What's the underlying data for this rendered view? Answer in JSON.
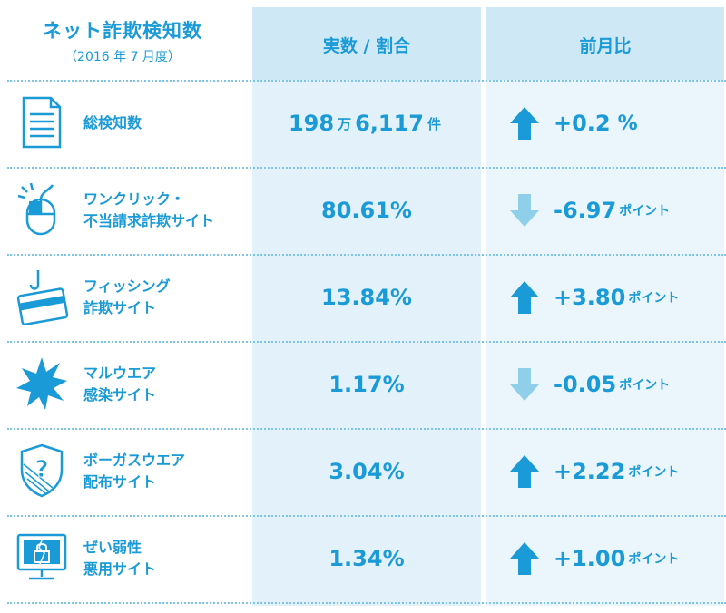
{
  "header": {
    "title": "ネット詐欺検知数",
    "subtitle": "（2016 年 7 月度）",
    "value_col": "実数 / 割合",
    "change_col": "前月比"
  },
  "colors": {
    "primary": "#1a9ad6",
    "up_arrow": "#1a9ad6",
    "down_arrow": "#8fcfea"
  },
  "rows": [
    {
      "icon": "document-icon",
      "label_lines": [
        "総検知数",
        ""
      ],
      "value_parts": [
        "198",
        "万",
        "6,117",
        "件"
      ],
      "direction": "up",
      "change_value": "+0.2",
      "change_unit": "%"
    },
    {
      "icon": "mouse-icon",
      "label_lines": [
        "ワンクリック・",
        "不当請求詐欺サイト"
      ],
      "value": "80.61%",
      "direction": "down",
      "change_value": "-6.97",
      "change_unit": "ポイント"
    },
    {
      "icon": "credit-card-hook-icon",
      "label_lines": [
        "フィッシング",
        "詐欺サイト"
      ],
      "value": "13.84%",
      "direction": "up",
      "change_value": "+3.80",
      "change_unit": "ポイント"
    },
    {
      "icon": "malware-burst-icon",
      "label_lines": [
        "マルウエア",
        "感染サイト"
      ],
      "value": "1.17%",
      "direction": "down",
      "change_value": "-0.05",
      "change_unit": "ポイント"
    },
    {
      "icon": "shield-question-icon",
      "label_lines": [
        "ボーガスウエア",
        "配布サイト"
      ],
      "value": "3.04%",
      "direction": "up",
      "change_value": "+2.22",
      "change_unit": "ポイント"
    },
    {
      "icon": "broken-screen-icon",
      "label_lines": [
        "ぜい弱性",
        "悪用サイト"
      ],
      "value": "1.34%",
      "direction": "up",
      "change_value": "+1.00",
      "change_unit": "ポイント"
    }
  ]
}
